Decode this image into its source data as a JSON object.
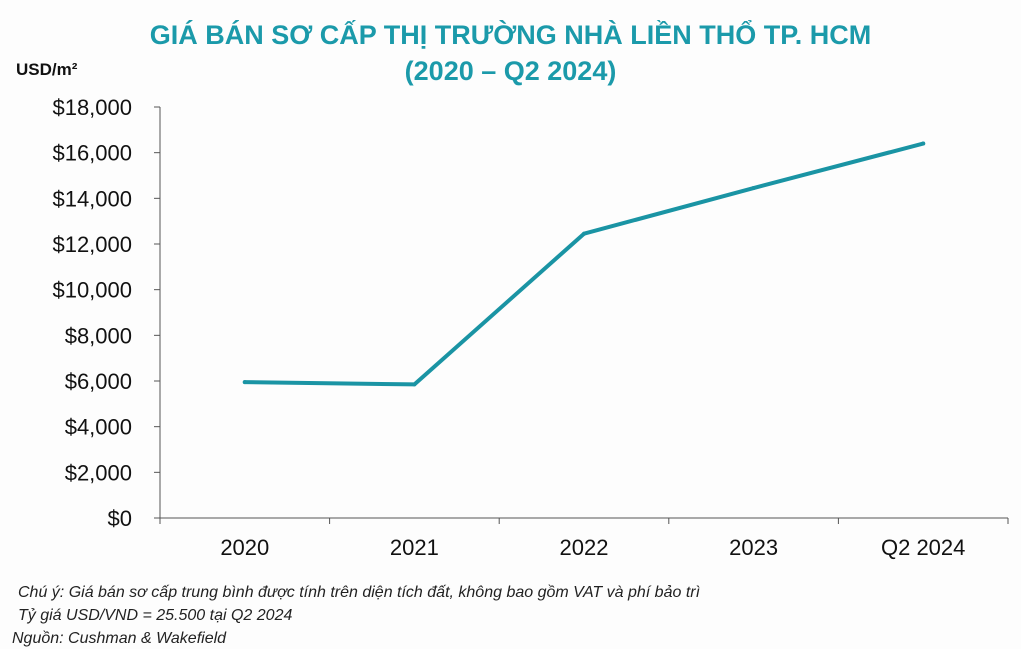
{
  "chart_data": {
    "type": "line",
    "title": "GIÁ BÁN SƠ CẤP THỊ TRƯỜNG NHÀ LIỀN THỔ TP. HCM",
    "subtitle": "(2020 – Q2 2024)",
    "ylabel": "USD/m²",
    "xlabel": "",
    "categories": [
      "2020",
      "2021",
      "2022",
      "2023",
      "Q2 2024"
    ],
    "values": [
      5950,
      5850,
      12450,
      14450,
      16400
    ],
    "ylim": [
      0,
      18000
    ],
    "yticks": [
      0,
      2000,
      4000,
      6000,
      8000,
      10000,
      12000,
      14000,
      16000,
      18000
    ],
    "ytick_labels": [
      "$0",
      "$2,000",
      "$4,000",
      "$6,000",
      "$8,000",
      "$10,000",
      "$12,000",
      "$14,000",
      "$16,000",
      "$18,000"
    ],
    "grid": false,
    "line_color": "#1a94a4",
    "title_color": "#1b9aaa"
  },
  "notes": {
    "note": "Chú ý: Giá bán sơ cấp trung bình được tính trên diện tích đất, không bao gồm VAT và phí bảo trì",
    "exchange": "Tỷ giá USD/VND = 25.500 tại Q2 2024",
    "source": "Nguồn: Cushman & Wakefield"
  }
}
